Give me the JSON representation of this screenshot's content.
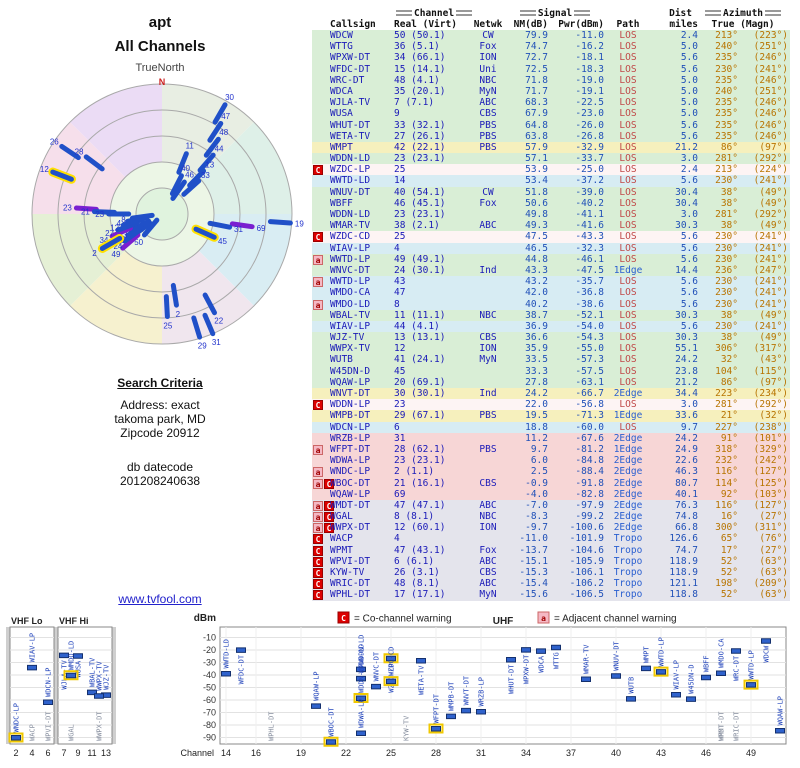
{
  "left": {
    "title": "apt",
    "subtitle": "All Channels",
    "truenorth": "TrueNorth",
    "north": "N",
    "search_criteria": "Search Criteria",
    "address1": "Address: exact",
    "address2": "takoma park, MD",
    "address3": "Zipcode 20912",
    "datecode_label": "db datecode",
    "datecode": "201208240638",
    "link": "www.tvfool.com"
  },
  "colors": {
    "co_channel_red": "#dd0000",
    "adjacent_pink": "#f5b8c4",
    "bar_blue": "#2f62cc",
    "link_blue": "#2222cc"
  },
  "header": {
    "callsign": "Callsign",
    "channel": "Channel",
    "real_virt": "Real (Virt)",
    "netwk": "Netwk",
    "signal": "Signal",
    "nm": "NM(dB)",
    "pwr": "Pwr(dBm)",
    "path": "Path",
    "dist": "Dist",
    "miles": "miles",
    "azimuth": "Azimuth",
    "true_magn": "True (Magn)"
  },
  "legend": {
    "c_badge": "C",
    "c_text": "= Co-channel warning",
    "a_badge": "a",
    "a_text": "= Adjacent channel warning"
  },
  "plot": {
    "dbm": "dBm",
    "channel": "Channel",
    "vhf_lo": "VHF Lo",
    "vhf_hi": "VHF Hi",
    "uhf": "UHF",
    "dbm_ticks": [
      "-10",
      "-20",
      "-30",
      "-40",
      "-50",
      "-60",
      "-70",
      "-80",
      "-90"
    ],
    "lo_ticks": [
      "2",
      "4",
      "6"
    ],
    "hi_ticks": [
      "7",
      "9",
      "11",
      "13"
    ],
    "uhf_ticks": [
      "14",
      "16",
      "19",
      "22",
      "25",
      "28",
      "31",
      "34",
      "37",
      "40",
      "43",
      "46",
      "49"
    ]
  },
  "radar": {
    "bars": [
      {
        "a": 30,
        "r": 0.97,
        "t": "30"
      },
      {
        "a": 33,
        "r": 0.83,
        "t": "47"
      },
      {
        "a": 37,
        "r": 0.72,
        "t": "48"
      },
      {
        "a": 41,
        "r": 0.6,
        "t": "44"
      },
      {
        "a": 22,
        "r": 0.5,
        "t": "11"
      },
      {
        "a": 44,
        "r": 0.46,
        "t": "13"
      },
      {
        "a": 48,
        "r": 0.38,
        "t": "33"
      },
      {
        "a": 35,
        "r": 0.3,
        "t": "46"
      },
      {
        "a": 27,
        "r": 0.33,
        "t": "40"
      },
      {
        "a": 304,
        "r": 0.93,
        "t": "26"
      },
      {
        "a": 307,
        "r": 0.73,
        "t": "28"
      },
      {
        "a": 291,
        "r": 0.9,
        "t": "12",
        "hl": true
      },
      {
        "a": 274,
        "r": 0.66,
        "t": "23",
        "c": "purple"
      },
      {
        "a": 272,
        "r": 0.52,
        "t": "21"
      },
      {
        "a": 270,
        "r": 0.41,
        "t": "23"
      },
      {
        "a": 233,
        "r": 0.27,
        "t": "36"
      },
      {
        "a": 220,
        "r": 0.21,
        "t": "50"
      },
      {
        "a": 229,
        "r": 0.4,
        "t": "49",
        "c": "purple"
      },
      {
        "a": 234,
        "r": 0.35,
        "t": "24"
      },
      {
        "a": 238,
        "r": 0.31,
        "t": "25"
      },
      {
        "a": 242,
        "r": 0.27,
        "t": "13"
      },
      {
        "a": 246,
        "r": 0.42,
        "t": "34",
        "c": "purple"
      },
      {
        "a": 250,
        "r": 0.36,
        "t": "27"
      },
      {
        "a": 254,
        "r": 0.31,
        "t": "12"
      },
      {
        "a": 258,
        "r": 0.27,
        "t": "4"
      },
      {
        "a": 262,
        "r": 0.23,
        "t": "8"
      },
      {
        "a": 240,
        "r": 0.53,
        "t": "2",
        "hl": true
      },
      {
        "a": 114,
        "r": 0.44,
        "t": "45",
        "hl": true
      },
      {
        "a": 98,
        "r": 0.7,
        "t": "69",
        "c": "purple"
      },
      {
        "a": 101,
        "r": 0.53,
        "t": "31"
      },
      {
        "a": 94,
        "r": 0.99,
        "t": "19"
      },
      {
        "a": 152,
        "r": 0.86,
        "t": "22"
      },
      {
        "a": 163,
        "r": 0.99,
        "t": "29"
      },
      {
        "a": 157,
        "r": 1.0,
        "t": "31"
      },
      {
        "a": 177,
        "r": 0.79,
        "t": "25"
      },
      {
        "a": 171,
        "r": 0.71,
        "t": "2"
      }
    ]
  },
  "stations": [
    {
      "b": [],
      "cs": "WDCW",
      "ch": "50 (50.1)",
      "rf": 50,
      "net": "CW",
      "nm": "79.9",
      "pw": "-11.0",
      "path": "LOS",
      "mi": "2.4",
      "tr": "213°",
      "mg": "(223°)",
      "bg": "g"
    },
    {
      "b": [],
      "cs": "WTTG",
      "ch": "36 (5.1)",
      "rf": 36,
      "net": "Fox",
      "nm": "74.7",
      "pw": "-16.2",
      "path": "LOS",
      "mi": "5.0",
      "tr": "240°",
      "mg": "(251°)",
      "bg": "g"
    },
    {
      "b": [],
      "cs": "WPXW-DT",
      "ch": "34 (66.1)",
      "rf": 34,
      "net": "ION",
      "nm": "72.7",
      "pw": "-18.1",
      "path": "LOS",
      "mi": "5.6",
      "tr": "235°",
      "mg": "(246°)",
      "bg": "g"
    },
    {
      "b": [],
      "cs": "WFDC-DT",
      "ch": "15 (14.1)",
      "rf": 15,
      "net": "Uni",
      "nm": "72.5",
      "pw": "-18.3",
      "path": "LOS",
      "mi": "5.6",
      "tr": "230°",
      "mg": "(241°)",
      "bg": "g"
    },
    {
      "b": [],
      "cs": "WRC-DT",
      "ch": "48 (4.1)",
      "rf": 48,
      "net": "NBC",
      "nm": "71.8",
      "pw": "-19.0",
      "path": "LOS",
      "mi": "5.0",
      "tr": "235°",
      "mg": "(246°)",
      "bg": "g"
    },
    {
      "b": [],
      "cs": "WDCA",
      "ch": "35 (20.1)",
      "rf": 35,
      "net": "MyN",
      "nm": "71.7",
      "pw": "-19.1",
      "path": "LOS",
      "mi": "5.0",
      "tr": "240°",
      "mg": "(251°)",
      "bg": "g"
    },
    {
      "b": [],
      "cs": "WJLA-TV",
      "ch": "7 (7.1)",
      "rf": 7,
      "net": "ABC",
      "nm": "68.3",
      "pw": "-22.5",
      "path": "LOS",
      "mi": "5.0",
      "tr": "235°",
      "mg": "(246°)",
      "bg": "g"
    },
    {
      "b": [],
      "cs": "WUSA",
      "ch": "9",
      "rf": 9,
      "net": "CBS",
      "nm": "67.9",
      "pw": "-23.0",
      "path": "LOS",
      "mi": "5.0",
      "tr": "235°",
      "mg": "(246°)",
      "bg": "g"
    },
    {
      "b": [],
      "cs": "WHUT-DT",
      "ch": "33 (32.1)",
      "rf": 33,
      "net": "PBS",
      "nm": "64.8",
      "pw": "-26.0",
      "path": "LOS",
      "mi": "5.6",
      "tr": "235°",
      "mg": "(246°)",
      "bg": "g"
    },
    {
      "b": [],
      "cs": "WETA-TV",
      "ch": "27 (26.1)",
      "rf": 27,
      "net": "PBS",
      "nm": "63.8",
      "pw": "-26.8",
      "path": "LOS",
      "mi": "5.6",
      "tr": "235°",
      "mg": "(246°)",
      "bg": "g"
    },
    {
      "b": [],
      "cs": "WMPT",
      "ch": "42 (22.1)",
      "rf": 42,
      "net": "PBS",
      "nm": "57.9",
      "pw": "-32.9",
      "path": "LOS",
      "mi": "21.2",
      "tr": "86°",
      "mg": "(97°)",
      "bg": "y"
    },
    {
      "b": [],
      "cs": "WDDN-LD",
      "ch": "23 (23.1)",
      "rf": 23,
      "net": "",
      "nm": "57.1",
      "pw": "-33.7",
      "path": "LOS",
      "mi": "3.0",
      "tr": "281°",
      "mg": "(292°)",
      "bg": "g"
    },
    {
      "b": [
        "C"
      ],
      "cs": "WZDC-LP",
      "ch": "25",
      "rf": 25,
      "net": "",
      "nm": "53.9",
      "pw": "-25.0",
      "path": "LOS",
      "mi": "2.4",
      "tr": "213°",
      "mg": "(224°)",
      "bg": "w"
    },
    {
      "b": [],
      "cs": "WWTD-LD",
      "ch": "14",
      "rf": 14,
      "net": "",
      "nm": "53.4",
      "pw": "-37.2",
      "path": "LOS",
      "mi": "5.6",
      "tr": "230°",
      "mg": "(241°)",
      "bg": "c"
    },
    {
      "b": [],
      "cs": "WNUV-DT",
      "ch": "40 (54.1)",
      "rf": 40,
      "net": "CW",
      "nm": "51.8",
      "pw": "-39.0",
      "path": "LOS",
      "mi": "30.4",
      "tr": "38°",
      "mg": "(49°)",
      "bg": "g"
    },
    {
      "b": [],
      "cs": "WBFF",
      "ch": "46 (45.1)",
      "rf": 46,
      "net": "Fox",
      "nm": "50.6",
      "pw": "-40.2",
      "path": "LOS",
      "mi": "30.4",
      "tr": "38°",
      "mg": "(49°)",
      "bg": "g"
    },
    {
      "b": [],
      "cs": "WDDN-LD",
      "ch": "23 (23.1)",
      "rf": 23,
      "net": "",
      "nm": "49.8",
      "pw": "-41.1",
      "path": "LOS",
      "mi": "3.0",
      "tr": "281°",
      "mg": "(292°)",
      "bg": "g"
    },
    {
      "b": [],
      "cs": "WMAR-TV",
      "ch": "38 (2.1)",
      "rf": 38,
      "net": "ABC",
      "nm": "49.3",
      "pw": "-41.6",
      "path": "LOS",
      "mi": "30.3",
      "tr": "38°",
      "mg": "(49°)",
      "bg": "g"
    },
    {
      "b": [
        "C"
      ],
      "cs": "WZDC-CD",
      "ch": "25",
      "rf": 25,
      "net": "",
      "nm": "47.5",
      "pw": "-43.3",
      "path": "LOS",
      "mi": "5.6",
      "tr": "230°",
      "mg": "(241°)",
      "bg": "w"
    },
    {
      "b": [],
      "cs": "WIAV-LP",
      "ch": "4",
      "rf": 4,
      "net": "",
      "nm": "46.5",
      "pw": "-32.3",
      "path": "LOS",
      "mi": "5.6",
      "tr": "230°",
      "mg": "(241°)",
      "bg": "c"
    },
    {
      "b": [
        "a"
      ],
      "cs": "WWTD-LP",
      "ch": "49 (49.1)",
      "rf": 49,
      "net": "",
      "nm": "44.8",
      "pw": "-46.1",
      "path": "LOS",
      "mi": "5.6",
      "tr": "230°",
      "mg": "(241°)",
      "bg": "g"
    },
    {
      "b": [],
      "cs": "WNVC-DT",
      "ch": "24 (30.1)",
      "rf": 24,
      "net": "Ind",
      "nm": "43.3",
      "pw": "-47.5",
      "path": "1Edge",
      "mi": "14.4",
      "tr": "236°",
      "mg": "(247°)",
      "bg": "g"
    },
    {
      "b": [
        "a"
      ],
      "cs": "WWTD-LP",
      "ch": "43",
      "rf": 43,
      "net": "",
      "nm": "43.2",
      "pw": "-35.7",
      "path": "LOS",
      "mi": "5.6",
      "tr": "230°",
      "mg": "(241°)",
      "bg": "c"
    },
    {
      "b": [],
      "cs": "WMDO-CA",
      "ch": "47",
      "rf": 47,
      "net": "",
      "nm": "42.0",
      "pw": "-36.8",
      "path": "LOS",
      "mi": "5.6",
      "tr": "230°",
      "mg": "(241°)",
      "bg": "c"
    },
    {
      "b": [
        "a"
      ],
      "cs": "WMDO-LD",
      "ch": "8",
      "rf": 8,
      "net": "",
      "nm": "40.2",
      "pw": "-38.6",
      "path": "LOS",
      "mi": "5.6",
      "tr": "230°",
      "mg": "(241°)",
      "bg": "c"
    },
    {
      "b": [],
      "cs": "WBAL-TV",
      "ch": "11 (11.1)",
      "rf": 11,
      "net": "NBC",
      "nm": "38.7",
      "pw": "-52.1",
      "path": "LOS",
      "mi": "30.3",
      "tr": "38°",
      "mg": "(49°)",
      "bg": "g"
    },
    {
      "b": [],
      "cs": "WIAV-LP",
      "ch": "44 (4.1)",
      "rf": 44,
      "net": "",
      "nm": "36.9",
      "pw": "-54.0",
      "path": "LOS",
      "mi": "5.6",
      "tr": "230°",
      "mg": "(241°)",
      "bg": "c"
    },
    {
      "b": [],
      "cs": "WJZ-TV",
      "ch": "13 (13.1)",
      "rf": 13,
      "net": "CBS",
      "nm": "36.6",
      "pw": "-54.3",
      "path": "LOS",
      "mi": "30.3",
      "tr": "38°",
      "mg": "(49°)",
      "bg": "g"
    },
    {
      "b": [],
      "cs": "WWPX-TV",
      "ch": "12",
      "rf": 12,
      "net": "ION",
      "nm": "35.9",
      "pw": "-55.0",
      "path": "LOS",
      "mi": "55.1",
      "tr": "306°",
      "mg": "(317°)",
      "bg": "g"
    },
    {
      "b": [],
      "cs": "WUTB",
      "ch": "41 (24.1)",
      "rf": 41,
      "net": "MyN",
      "nm": "33.5",
      "pw": "-57.3",
      "path": "LOS",
      "mi": "24.2",
      "tr": "32°",
      "mg": "(43°)",
      "bg": "g"
    },
    {
      "b": [],
      "cs": "W45DN-D",
      "ch": "45",
      "rf": 45,
      "net": "",
      "nm": "33.3",
      "pw": "-57.5",
      "path": "LOS",
      "mi": "23.8",
      "tr": "104°",
      "mg": "(115°)",
      "bg": "g"
    },
    {
      "b": [],
      "cs": "WQAW-LP",
      "ch": "20 (69.1)",
      "rf": 20,
      "net": "",
      "nm": "27.8",
      "pw": "-63.1",
      "path": "LOS",
      "mi": "21.2",
      "tr": "86°",
      "mg": "(97°)",
      "bg": "g"
    },
    {
      "b": [],
      "cs": "WNVT-DT",
      "ch": "30 (30.1)",
      "rf": 30,
      "net": "Ind",
      "nm": "24.2",
      "pw": "-66.7",
      "path": "2Edge",
      "mi": "34.4",
      "tr": "223°",
      "mg": "(234°)",
      "bg": "y"
    },
    {
      "b": [
        "C"
      ],
      "cs": "WDDN-LP",
      "ch": "23",
      "rf": 23,
      "net": "",
      "nm": "22.0",
      "pw": "-56.8",
      "path": "LOS",
      "mi": "3.0",
      "tr": "281°",
      "mg": "(292°)",
      "bg": "w"
    },
    {
      "b": [],
      "cs": "WMPB-DT",
      "ch": "29 (67.1)",
      "rf": 29,
      "net": "PBS",
      "nm": "19.5",
      "pw": "-71.3",
      "path": "1Edge",
      "mi": "33.6",
      "tr": "21°",
      "mg": "(32°)",
      "bg": "y"
    },
    {
      "b": [],
      "cs": "WDCN-LP",
      "ch": "6",
      "rf": 6,
      "net": "",
      "nm": "18.8",
      "pw": "-60.0",
      "path": "LOS",
      "mi": "9.7",
      "tr": "227°",
      "mg": "(238°)",
      "bg": "c"
    },
    {
      "b": [],
      "cs": "WRZB-LP",
      "ch": "31",
      "rf": 31,
      "net": "",
      "nm": "11.2",
      "pw": "-67.6",
      "path": "2Edge",
      "mi": "24.2",
      "tr": "91°",
      "mg": "(101°)",
      "bg": "p"
    },
    {
      "b": [
        "a"
      ],
      "cs": "WFPT-DT",
      "ch": "28 (62.1)",
      "rf": 28,
      "net": "PBS",
      "nm": "9.7",
      "pw": "-81.2",
      "path": "1Edge",
      "mi": "24.9",
      "tr": "318°",
      "mg": "(329°)",
      "bg": "p"
    },
    {
      "b": [],
      "cs": "WDWA-LP",
      "ch": "23 (23.1)",
      "rf": 23,
      "net": "",
      "nm": "6.0",
      "pw": "-84.8",
      "path": "2Edge",
      "mi": "22.6",
      "tr": "232°",
      "mg": "(242°)",
      "bg": "p"
    },
    {
      "b": [
        "a"
      ],
      "cs": "WNDC-LP",
      "ch": "2 (1.1)",
      "rf": 2,
      "net": "",
      "nm": "2.5",
      "pw": "-88.4",
      "path": "2Edge",
      "mi": "46.3",
      "tr": "116°",
      "mg": "(127°)",
      "bg": "p"
    },
    {
      "b": [
        "a",
        "C"
      ],
      "cs": "WBOC-DT",
      "ch": "21 (16.1)",
      "rf": 21,
      "net": "CBS",
      "nm": "-0.9",
      "pw": "-91.8",
      "path": "2Edge",
      "mi": "80.7",
      "tr": "114°",
      "mg": "(125°)",
      "bg": "p"
    },
    {
      "b": [],
      "cs": "WQAW-LP",
      "ch": "69",
      "rf": 69,
      "net": "",
      "nm": "-4.0",
      "pw": "-82.8",
      "path": "2Edge",
      "mi": "40.1",
      "tr": "92°",
      "mg": "(103°)",
      "bg": "p"
    },
    {
      "b": [
        "a",
        "C"
      ],
      "cs": "WMDT-DT",
      "ch": "47 (47.1)",
      "rf": 47,
      "net": "ABC",
      "nm": "-7.0",
      "pw": "-97.9",
      "path": "2Edge",
      "mi": "76.3",
      "tr": "116°",
      "mg": "(127°)",
      "bg": "gr"
    },
    {
      "b": [
        "a",
        "C"
      ],
      "cs": "WGAL",
      "ch": "8 (8.1)",
      "rf": 8,
      "net": "NBC",
      "nm": "-8.3",
      "pw": "-99.2",
      "path": "2Edge",
      "mi": "74.8",
      "tr": "16°",
      "mg": "(27°)",
      "bg": "gr"
    },
    {
      "b": [
        "a",
        "C"
      ],
      "cs": "WWPX-DT",
      "ch": "12 (60.1)",
      "rf": 12,
      "net": "ION",
      "nm": "-9.7",
      "pw": "-100.6",
      "path": "2Edge",
      "mi": "66.8",
      "tr": "300°",
      "mg": "(311°)",
      "bg": "gr"
    },
    {
      "b": [
        "C"
      ],
      "cs": "WACP",
      "ch": "4",
      "rf": 4,
      "net": "",
      "nm": "-11.0",
      "pw": "-101.9",
      "path": "Tropo",
      "mi": "126.6",
      "tr": "65°",
      "mg": "(76°)",
      "bg": "gr"
    },
    {
      "b": [
        "C"
      ],
      "cs": "WPMT",
      "ch": "47 (43.1)",
      "rf": 47,
      "net": "Fox",
      "nm": "-13.7",
      "pw": "-104.6",
      "path": "Tropo",
      "mi": "74.7",
      "tr": "17°",
      "mg": "(27°)",
      "bg": "gr"
    },
    {
      "b": [
        "C"
      ],
      "cs": "WPVI-DT",
      "ch": "6 (6.1)",
      "rf": 6,
      "net": "ABC",
      "nm": "-15.1",
      "pw": "-105.9",
      "path": "Tropo",
      "mi": "118.9",
      "tr": "52°",
      "mg": "(63°)",
      "bg": "gr"
    },
    {
      "b": [
        "C"
      ],
      "cs": "KYW-TV",
      "ch": "26 (3.1)",
      "rf": 26,
      "net": "CBS",
      "nm": "-15.3",
      "pw": "-106.1",
      "path": "Tropo",
      "mi": "118.9",
      "tr": "52°",
      "mg": "(63°)",
      "bg": "gr"
    },
    {
      "b": [
        "C"
      ],
      "cs": "WRIC-DT",
      "ch": "48 (8.1)",
      "rf": 48,
      "net": "ABC",
      "nm": "-15.4",
      "pw": "-106.2",
      "path": "Tropo",
      "mi": "121.1",
      "tr": "198°",
      "mg": "(209°)",
      "bg": "gr"
    },
    {
      "b": [
        "C"
      ],
      "cs": "WPHL-DT",
      "ch": "17 (17.1)",
      "rf": 17,
      "net": "MyN",
      "nm": "-15.6",
      "pw": "-106.5",
      "path": "Tropo",
      "mi": "118.8",
      "tr": "52°",
      "mg": "(63°)",
      "bg": "gr"
    }
  ]
}
